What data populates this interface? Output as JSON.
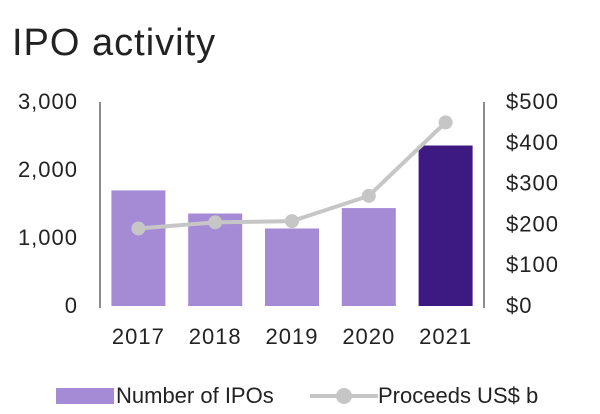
{
  "colors": {
    "bar": "#a58ad6",
    "bar_highlight": "#3c1a82",
    "line": "#c6c6c6",
    "axis": "#8c8c8c",
    "text": "#222222"
  },
  "chart_data": {
    "type": "bar",
    "title": "IPO activity",
    "categories": [
      "2017",
      "2018",
      "2019",
      "2020",
      "2021"
    ],
    "series": [
      {
        "name": "Number of IPOs",
        "type": "bar",
        "axis": "left",
        "values": [
          1700,
          1360,
          1140,
          1440,
          2360
        ]
      },
      {
        "name": "Proceeds US$ b",
        "type": "line",
        "axis": "right",
        "values": [
          190,
          205,
          208,
          270,
          450
        ]
      }
    ],
    "left_axis": {
      "ylim": [
        0,
        3000
      ],
      "ticks": [
        0,
        1000,
        2000,
        3000
      ],
      "tick_labels": [
        "0",
        "1,000",
        "2,000",
        "3,000"
      ]
    },
    "right_axis": {
      "ylim": [
        0,
        500
      ],
      "ticks": [
        0,
        100,
        200,
        300,
        400,
        500
      ],
      "tick_labels": [
        "$0",
        "$100",
        "$200",
        "$300",
        "$400",
        "$500"
      ]
    },
    "highlight_category": "2021",
    "legend_position": "bottom"
  }
}
